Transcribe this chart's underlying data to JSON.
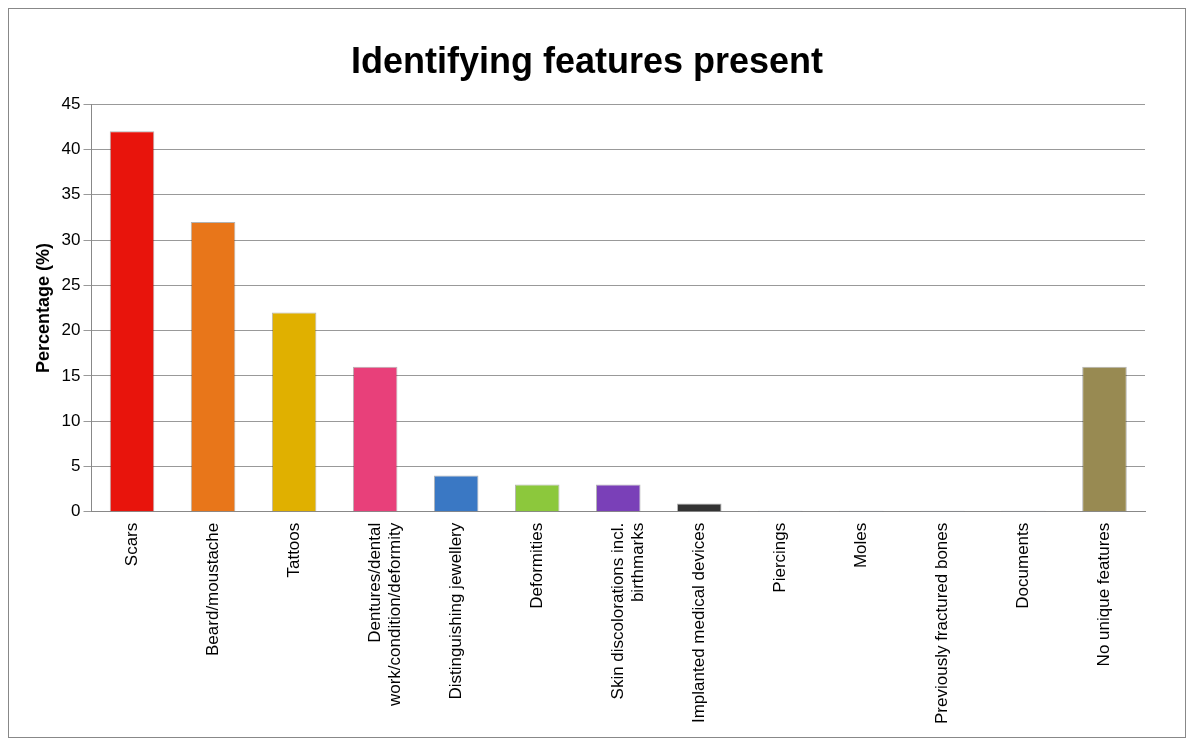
{
  "chart_data": {
    "type": "bar",
    "title": "Identifying features present",
    "ylabel": "Percentage (%)",
    "categories": [
      "Scars",
      "Beard/moustache",
      "Tattoos",
      "Dentures/dental work/condition/deformity",
      "Distinguishing jewellery",
      "Deformities",
      "Skin discolorations incl. birthmarks",
      "Implanted medical devices",
      "Piercings",
      "Moles",
      "Previously fractured bones",
      "Documents",
      "No unique features"
    ],
    "values": [
      42,
      32,
      22,
      16,
      4,
      3,
      3,
      0.9,
      0.1,
      0.1,
      0.1,
      0.1,
      16
    ],
    "colors": [
      "#e8140c",
      "#e8761a",
      "#e0b000",
      "#e8407a",
      "#3a78c4",
      "#8cc83c",
      "#7a40b8",
      "#333333",
      "#7a9ccc",
      "#7a9ccc",
      "#7a9ccc",
      "#7a9ccc",
      "#988a52"
    ],
    "ylim": [
      0,
      45
    ],
    "yticks": [
      0,
      5,
      10,
      15,
      20,
      25,
      30,
      35,
      40,
      45
    ],
    "grid": "y",
    "legend": false
  }
}
